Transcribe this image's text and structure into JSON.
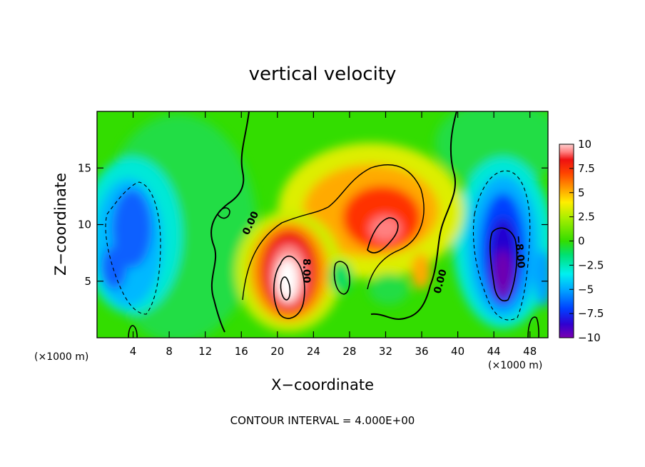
{
  "chart_data": {
    "type": "heatmap",
    "title": "vertical velocity",
    "xlabel": "X−coordinate",
    "ylabel": "Z−coordinate",
    "xunit_left": "(×1000 m)",
    "xunit_right": "(×1000 m)",
    "xlim": [
      0,
      50
    ],
    "ylim": [
      0,
      20
    ],
    "xticks": [
      4,
      8,
      12,
      16,
      20,
      24,
      28,
      32,
      36,
      40,
      44,
      48
    ],
    "yticks": [
      5,
      10,
      15
    ],
    "colorbar": {
      "ticks": [
        10,
        7.5,
        5,
        2.5,
        0,
        -2.5,
        -5,
        -7.5,
        -10
      ],
      "tick_labels": [
        "10",
        "7.5",
        "5",
        "2.5",
        "0",
        "−2.5",
        "−5",
        "−7.5",
        "−10"
      ],
      "range": [
        -10,
        10
      ],
      "colors": [
        "#7a00b0",
        "#2a00d8",
        "#0050ff",
        "#00a8ff",
        "#00f0f0",
        "#00e070",
        "#33dd00",
        "#aaee00",
        "#ffee00",
        "#ffaa00",
        "#ff5500",
        "#ee1100",
        "#ff8080",
        "#ffd0d0"
      ]
    },
    "contour_labels": [
      "0.00",
      "8.00",
      "0.00",
      "−8.00"
    ],
    "contour_interval": 4.0,
    "features": [
      {
        "name": "updraft core",
        "x": 21,
        "z": 5,
        "value": 14
      },
      {
        "name": "updraft",
        "x": 32,
        "z": 10,
        "value": 9
      },
      {
        "name": "downdraft",
        "x": 45,
        "z": 6,
        "value": -13
      },
      {
        "name": "downdraft",
        "x": 4,
        "z": 8,
        "value": -5
      }
    ]
  },
  "footer": "CONTOUR INTERVAL = 4.000E+00"
}
